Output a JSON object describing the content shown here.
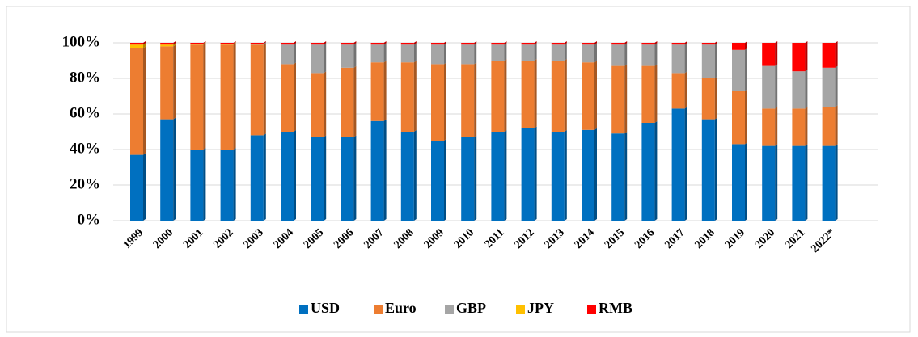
{
  "chart_data": {
    "type": "bar",
    "stacked": true,
    "categories": [
      "1999",
      "2000",
      "2001",
      "2002",
      "2003",
      "2004",
      "2005",
      "2006",
      "2007",
      "2008",
      "2009",
      "2010",
      "2011",
      "2012",
      "2013",
      "2014",
      "2015",
      "2016",
      "2017",
      "2018",
      "2019",
      "2020",
      "2021",
      "2022*"
    ],
    "series": [
      {
        "name": "USD",
        "color": "#0070c0",
        "values": [
          37,
          57,
          40,
          40,
          48,
          50,
          47,
          47,
          56,
          50,
          45,
          47,
          50,
          52,
          50,
          51,
          49,
          55,
          63,
          57,
          43,
          42,
          42,
          42
        ]
      },
      {
        "name": "Euro",
        "color": "#ed7d31",
        "values": [
          60,
          41,
          59,
          59,
          51,
          38,
          36,
          39,
          33,
          39,
          43,
          41,
          40,
          38,
          40,
          38,
          38,
          32,
          20,
          23,
          30,
          21,
          21,
          22
        ]
      },
      {
        "name": "GBP",
        "color": "#a5a5a5",
        "values": [
          0,
          0,
          0,
          0,
          0.5,
          11,
          16,
          13,
          10,
          10,
          11,
          11,
          9,
          9,
          9,
          10,
          12,
          12,
          16,
          19,
          23,
          24,
          21,
          22
        ]
      },
      {
        "name": "JPY",
        "color": "#ffc000",
        "values": [
          2,
          1,
          0.5,
          0.5,
          0,
          0,
          0,
          0,
          0,
          0,
          0,
          0,
          0,
          0,
          0,
          0,
          0,
          0,
          0,
          0,
          0,
          0,
          0,
          0
        ]
      },
      {
        "name": "RMB",
        "color": "#ff0000",
        "values": [
          1,
          1,
          0.5,
          0.5,
          0.5,
          1,
          1,
          1,
          1,
          1,
          1,
          1,
          1,
          1,
          1,
          1,
          1,
          1,
          1,
          1,
          4,
          13,
          16,
          14
        ]
      }
    ],
    "ylim": [
      0,
      100
    ],
    "yticks": [
      {
        "value": 0,
        "label": "0%"
      },
      {
        "value": 20,
        "label": "20%"
      },
      {
        "value": 40,
        "label": "40%"
      },
      {
        "value": 60,
        "label": "60%"
      },
      {
        "value": 80,
        "label": "80%"
      },
      {
        "value": 100,
        "label": "100%"
      }
    ],
    "grid": true,
    "legend": "bottom"
  }
}
